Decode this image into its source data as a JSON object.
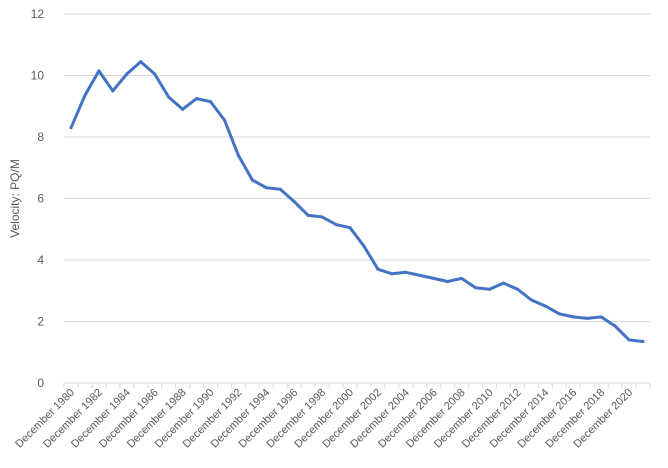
{
  "chart_data": {
    "type": "line",
    "title": "",
    "xlabel": "",
    "ylabel": "Velocity: PQ/M",
    "ylim": [
      0,
      12
    ],
    "yticks": [
      0,
      2,
      4,
      6,
      8,
      10,
      12
    ],
    "grid": "horizontal",
    "legend": "none",
    "x": [
      "December 1980",
      "December 1981",
      "December 1982",
      "December 1983",
      "December 1984",
      "December 1985",
      "December 1986",
      "December 1987",
      "December 1988",
      "December 1989",
      "December 1990",
      "December 1991",
      "December 1992",
      "December 1993",
      "December 1994",
      "December 1995",
      "December 1996",
      "December 1997",
      "December 1998",
      "December 1999",
      "December 2000",
      "December 2001",
      "December 2002",
      "December 2003",
      "December 2004",
      "December 2005",
      "December 2006",
      "December 2007",
      "December 2008",
      "December 2009",
      "December 2010",
      "December 2011",
      "December 2012",
      "December 2013",
      "December 2014",
      "December 2015",
      "December 2016",
      "December 2017",
      "December 2018",
      "December 2019",
      "December 2020",
      "December 2021"
    ],
    "x_tick_labels": [
      "December 1980",
      "December 1982",
      "December 1984",
      "December 1986",
      "December 1988",
      "December 1990",
      "December 1992",
      "December 1994",
      "December 1996",
      "December 1998",
      "December 2000",
      "December 2002",
      "December 2004",
      "December 2006",
      "December 2008",
      "December 2010",
      "December 2012",
      "December 2014",
      "December 2016",
      "December 2018",
      "December 2020"
    ],
    "series": [
      {
        "color": "#4472c4",
        "values": [
          8.3,
          9.35,
          10.15,
          9.5,
          10.05,
          10.45,
          10.05,
          9.3,
          8.9,
          9.25,
          9.15,
          8.55,
          7.4,
          6.6,
          6.35,
          6.3,
          5.9,
          5.45,
          5.4,
          5.15,
          5.05,
          4.45,
          3.7,
          3.55,
          3.6,
          3.5,
          3.4,
          3.3,
          3.4,
          3.1,
          3.05,
          3.25,
          3.05,
          2.7,
          2.5,
          2.25,
          2.15,
          2.1,
          2.15,
          1.85,
          1.4,
          1.35
        ]
      }
    ]
  }
}
